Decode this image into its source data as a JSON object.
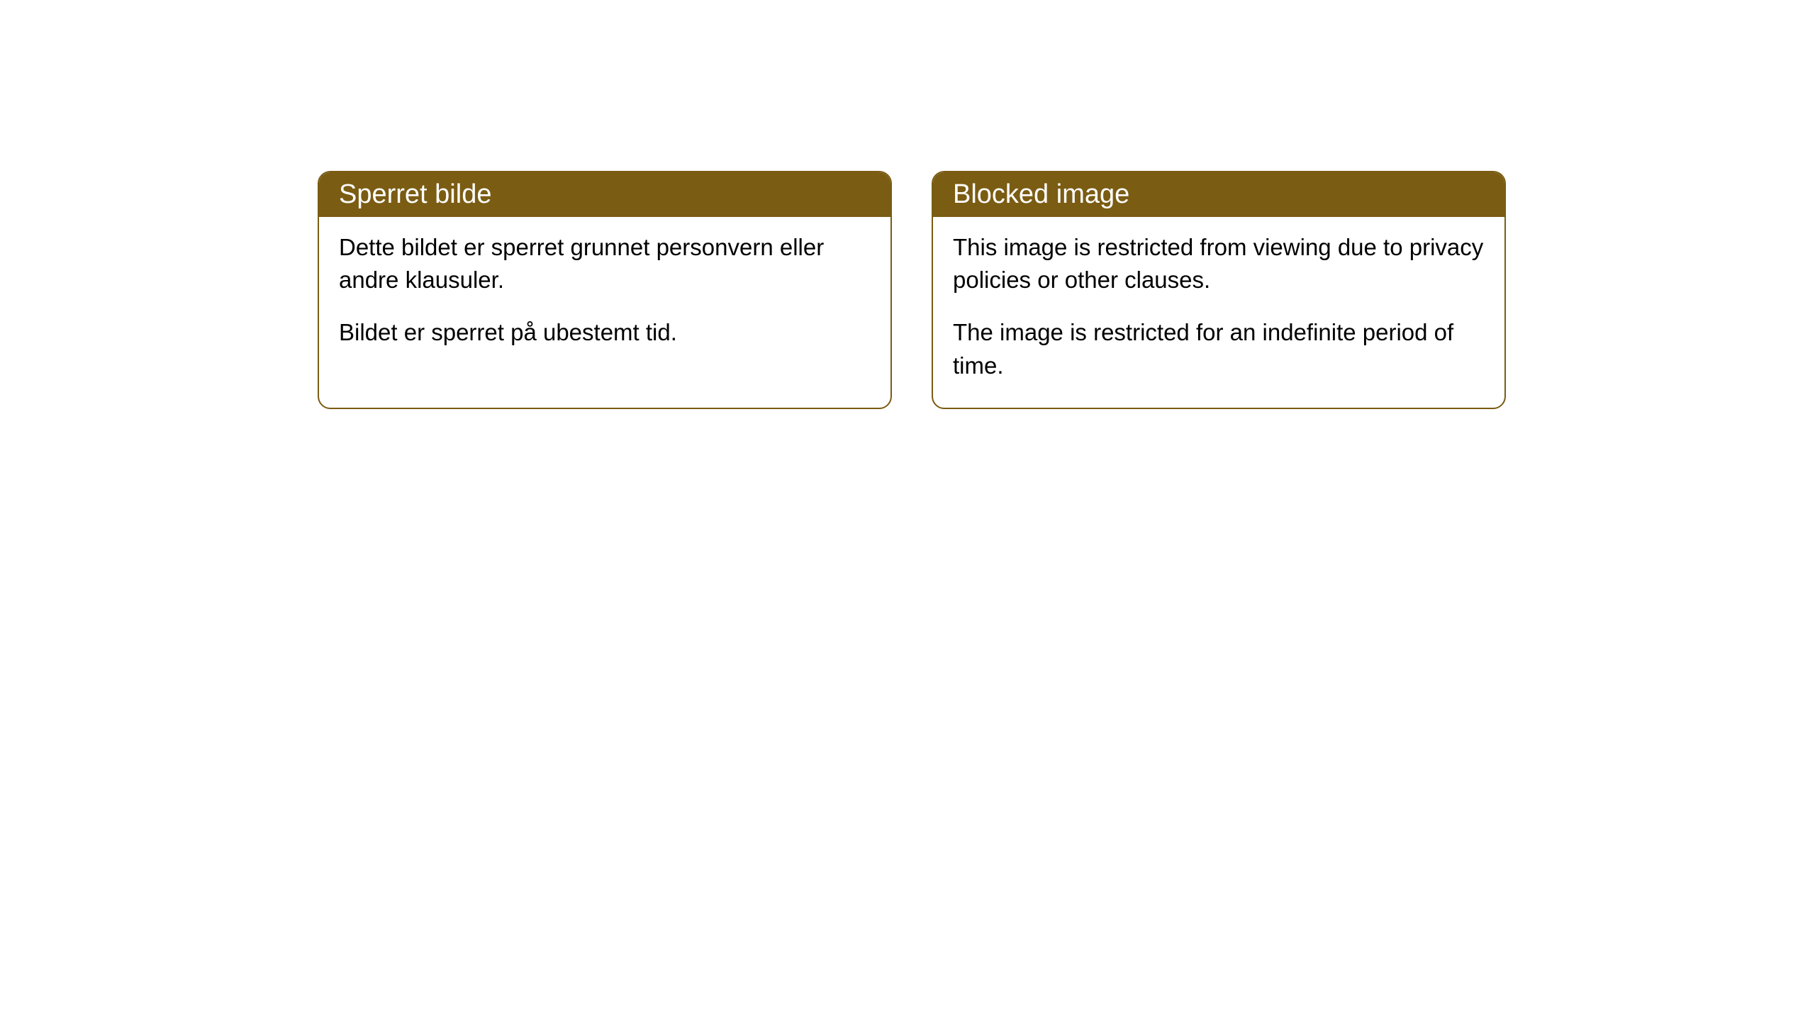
{
  "cards": [
    {
      "title": "Sperret bilde",
      "paragraphs": [
        "Dette bildet er sperret grunnet personvern eller andre klausuler.",
        "Bildet er sperret på ubestemt tid."
      ]
    },
    {
      "title": "Blocked image",
      "paragraphs": [
        "This image is restricted from viewing due to privacy policies or other clauses.",
        "The image is restricted for an indefinite period of time."
      ]
    }
  ],
  "styling": {
    "header_background_color": "#7a5c13",
    "header_text_color": "#ffffff",
    "border_color": "#7a5c13",
    "body_background_color": "#ffffff",
    "body_text_color": "#000000",
    "border_radius": 18,
    "header_fontsize": 38,
    "body_fontsize": 33
  }
}
